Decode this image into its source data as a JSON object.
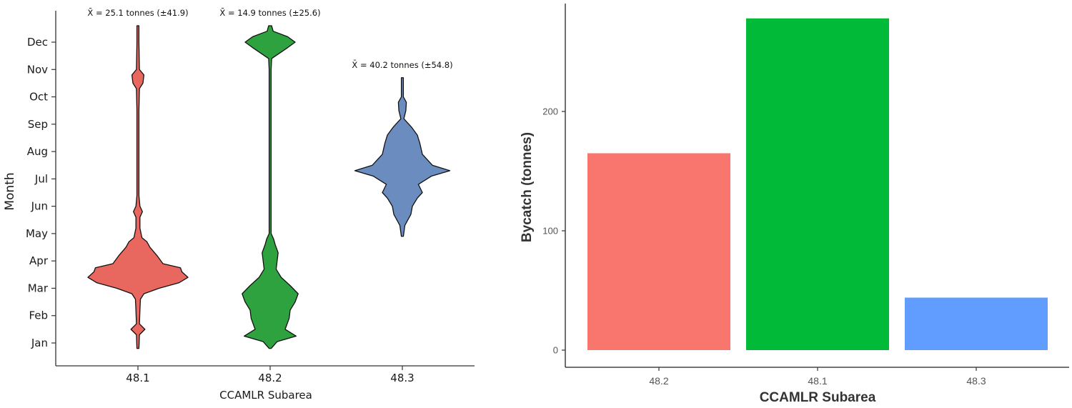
{
  "chart_data": [
    {
      "type": "violin",
      "xlabel": "CCAMLR Subarea",
      "ylabel": "Month",
      "categories": [
        "48.1",
        "48.2",
        "48.3"
      ],
      "y_ticks": [
        "Jan",
        "Feb",
        "Mar",
        "Apr",
        "May",
        "Jun",
        "Jul",
        "Aug",
        "Sep",
        "Oct",
        "Nov",
        "Dec"
      ],
      "grid": false,
      "series": [
        {
          "category": "48.1",
          "color": "#e8675e",
          "annotation": "X̄ = 25.1 tonnes (±41.9)",
          "range_months": [
            0.8,
            12.6
          ],
          "density": [
            [
              0.8,
              0.02
            ],
            [
              1.3,
              0.03
            ],
            [
              1.5,
              0.14
            ],
            [
              1.7,
              0.03
            ],
            [
              2.2,
              0.04
            ],
            [
              2.6,
              0.05
            ],
            [
              2.8,
              0.12
            ],
            [
              3.0,
              0.42
            ],
            [
              3.2,
              0.82
            ],
            [
              3.4,
              1.0
            ],
            [
              3.6,
              0.88
            ],
            [
              3.75,
              0.85
            ],
            [
              3.9,
              0.5
            ],
            [
              4.2,
              0.38
            ],
            [
              4.5,
              0.24
            ],
            [
              4.7,
              0.18
            ],
            [
              4.85,
              0.08
            ],
            [
              5.2,
              0.04
            ],
            [
              5.6,
              0.04
            ],
            [
              5.8,
              0.09
            ],
            [
              6.0,
              0.04
            ],
            [
              6.4,
              0.02
            ],
            [
              7.5,
              0.02
            ],
            [
              9.5,
              0.02
            ],
            [
              10.3,
              0.03
            ],
            [
              10.5,
              0.1
            ],
            [
              10.8,
              0.12
            ],
            [
              11.0,
              0.03
            ],
            [
              12.0,
              0.02
            ],
            [
              12.6,
              0.02
            ]
          ]
        },
        {
          "category": "48.2",
          "color": "#2ea23f",
          "annotation": "X̄ = 14.9 tonnes (±25.6)",
          "range_months": [
            0.8,
            12.6
          ],
          "density": [
            [
              0.8,
              0.02
            ],
            [
              1.05,
              0.14
            ],
            [
              1.25,
              0.52
            ],
            [
              1.5,
              0.3
            ],
            [
              1.9,
              0.38
            ],
            [
              2.2,
              0.4
            ],
            [
              2.5,
              0.5
            ],
            [
              2.8,
              0.56
            ],
            [
              3.1,
              0.4
            ],
            [
              3.4,
              0.22
            ],
            [
              3.7,
              0.12
            ],
            [
              4.0,
              0.14
            ],
            [
              4.3,
              0.16
            ],
            [
              4.6,
              0.1
            ],
            [
              4.8,
              0.07
            ],
            [
              5.0,
              0.02
            ],
            [
              11.0,
              0.02
            ],
            [
              11.4,
              0.03
            ],
            [
              11.8,
              0.35
            ],
            [
              12.0,
              0.5
            ],
            [
              12.2,
              0.35
            ],
            [
              12.4,
              0.06
            ],
            [
              12.6,
              0.03
            ]
          ]
        },
        {
          "category": "48.3",
          "color": "#6b8cbf",
          "annotation": "X̄ = 40.2 tonnes (±54.8)",
          "range_months": [
            4.9,
            10.7
          ],
          "density": [
            [
              4.9,
              0.02
            ],
            [
              5.3,
              0.05
            ],
            [
              5.7,
              0.17
            ],
            [
              6.0,
              0.2
            ],
            [
              6.3,
              0.3
            ],
            [
              6.5,
              0.4
            ],
            [
              6.8,
              0.32
            ],
            [
              7.1,
              0.58
            ],
            [
              7.3,
              0.95
            ],
            [
              7.5,
              0.6
            ],
            [
              7.9,
              0.4
            ],
            [
              8.3,
              0.35
            ],
            [
              8.6,
              0.3
            ],
            [
              8.9,
              0.18
            ],
            [
              9.2,
              0.03
            ],
            [
              9.5,
              0.07
            ],
            [
              9.8,
              0.08
            ],
            [
              10.0,
              0.02
            ],
            [
              10.7,
              0.02
            ]
          ]
        }
      ]
    },
    {
      "type": "bar",
      "xlabel": "CCAMLR Subarea",
      "ylabel": "Bycatch (tonnes)",
      "categories": [
        "48.2",
        "48.1",
        "48.3"
      ],
      "values": [
        165,
        278,
        44
      ],
      "colors": [
        "#f8766d",
        "#00ba38",
        "#619cff"
      ],
      "ylim": [
        0,
        290
      ],
      "y_ticks": [
        0,
        100,
        200
      ],
      "grid": false
    }
  ]
}
